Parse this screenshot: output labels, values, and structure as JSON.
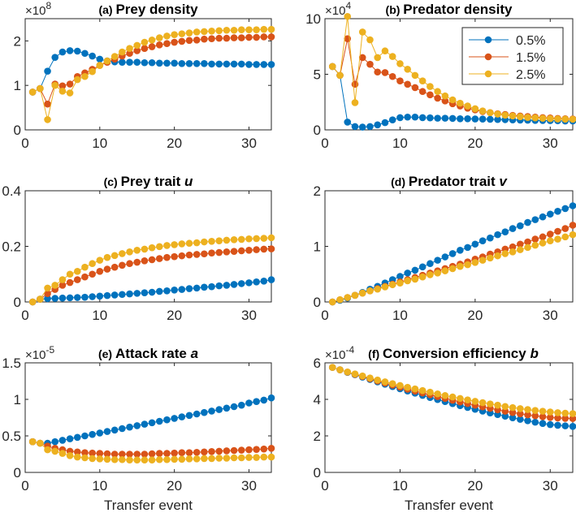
{
  "colors": [
    "#0072BD",
    "#D95319",
    "#EDB120"
  ],
  "chart_data": [
    {
      "type": "line",
      "panel": "(a)",
      "title": "Prey density",
      "title_var": "",
      "exponent": "8",
      "xlabel": "",
      "xlim": [
        0,
        33
      ],
      "xticks": [
        0,
        10,
        20,
        30
      ],
      "ylim": [
        0,
        2.5
      ],
      "yticks": [
        0,
        1,
        2
      ],
      "x": [
        1,
        2,
        3,
        4,
        5,
        6,
        7,
        8,
        9,
        10,
        11,
        12,
        13,
        14,
        15,
        16,
        17,
        18,
        19,
        20,
        21,
        22,
        23,
        24,
        25,
        26,
        27,
        28,
        29,
        30,
        31,
        32,
        33
      ],
      "series": [
        {
          "values": [
            0.85,
            0.93,
            1.32,
            1.63,
            1.75,
            1.78,
            1.77,
            1.72,
            1.66,
            1.59,
            1.55,
            1.53,
            1.52,
            1.52,
            1.52,
            1.51,
            1.51,
            1.5,
            1.5,
            1.5,
            1.49,
            1.49,
            1.49,
            1.49,
            1.48,
            1.48,
            1.48,
            1.48,
            1.48,
            1.47,
            1.47,
            1.47,
            1.47
          ]
        },
        {
          "values": [
            0.85,
            0.93,
            0.58,
            1.03,
            0.99,
            1.03,
            1.2,
            1.28,
            1.36,
            1.45,
            1.52,
            1.59,
            1.66,
            1.72,
            1.78,
            1.83,
            1.87,
            1.91,
            1.94,
            1.97,
            1.99,
            2.01,
            2.02,
            2.04,
            2.05,
            2.06,
            2.06,
            2.07,
            2.07,
            2.08,
            2.08,
            2.09,
            2.09
          ]
        },
        {
          "values": [
            0.85,
            0.93,
            0.23,
            1.0,
            0.87,
            0.83,
            1.13,
            1.2,
            1.31,
            1.45,
            1.55,
            1.65,
            1.75,
            1.83,
            1.9,
            1.97,
            2.02,
            2.07,
            2.11,
            2.14,
            2.16,
            2.18,
            2.2,
            2.21,
            2.22,
            2.23,
            2.24,
            2.24,
            2.25,
            2.25,
            2.25,
            2.26,
            2.26
          ]
        }
      ]
    },
    {
      "type": "line",
      "panel": "(b)",
      "title": "Predator density",
      "title_var": "",
      "exponent": "4",
      "xlabel": "",
      "xlim": [
        0,
        33
      ],
      "xticks": [
        0,
        10,
        20,
        30
      ],
      "ylim": [
        0,
        10
      ],
      "yticks": [
        0,
        5,
        10
      ],
      "legend": {
        "position": "top-right",
        "entries": [
          "0.5%",
          "1.5%",
          "2.5%"
        ]
      },
      "x": [
        1,
        2,
        3,
        4,
        5,
        6,
        7,
        8,
        9,
        10,
        11,
        12,
        13,
        14,
        15,
        16,
        17,
        18,
        19,
        20,
        21,
        22,
        23,
        24,
        25,
        26,
        27,
        28,
        29,
        30,
        31,
        32,
        33
      ],
      "series": [
        {
          "name": "0.5%",
          "values": [
            5.7,
            4.9,
            0.7,
            0.3,
            0.25,
            0.3,
            0.45,
            0.65,
            0.9,
            1.1,
            1.15,
            1.15,
            1.1,
            1.08,
            1.05,
            1.05,
            1.03,
            1.0,
            1.0,
            0.98,
            0.97,
            0.95,
            0.93,
            0.92,
            0.9,
            0.88,
            0.87,
            0.85,
            0.84,
            0.83,
            0.82,
            0.8,
            0.8
          ]
        },
        {
          "name": "1.5%",
          "values": [
            5.7,
            4.9,
            8.2,
            4.1,
            6.5,
            5.9,
            5.2,
            5.15,
            4.8,
            4.4,
            4.1,
            3.8,
            3.45,
            3.15,
            2.85,
            2.6,
            2.35,
            2.15,
            1.95,
            1.8,
            1.65,
            1.55,
            1.45,
            1.38,
            1.3,
            1.25,
            1.2,
            1.15,
            1.1,
            1.07,
            1.03,
            1.0,
            0.98
          ]
        },
        {
          "name": "2.5%",
          "values": [
            5.7,
            4.9,
            10.2,
            2.45,
            8.8,
            8.1,
            6.5,
            7.1,
            6.6,
            5.95,
            5.45,
            4.9,
            4.4,
            3.9,
            3.45,
            3.05,
            2.7,
            2.4,
            2.15,
            1.9,
            1.7,
            1.55,
            1.42,
            1.32,
            1.25,
            1.18,
            1.12,
            1.08,
            1.04,
            1.01,
            0.98,
            0.96,
            0.95
          ]
        }
      ]
    },
    {
      "type": "line",
      "panel": "(c)",
      "title": "Prey trait",
      "title_var": "u",
      "exponent": "",
      "xlabel": "",
      "xlim": [
        0,
        33
      ],
      "xticks": [
        0,
        10,
        20,
        30
      ],
      "ylim": [
        0,
        0.4
      ],
      "yticks": [
        0,
        0.2,
        0.4
      ],
      "x": [
        1,
        2,
        3,
        4,
        5,
        6,
        7,
        8,
        9,
        10,
        11,
        12,
        13,
        14,
        15,
        16,
        17,
        18,
        19,
        20,
        21,
        22,
        23,
        24,
        25,
        26,
        27,
        28,
        29,
        30,
        31,
        32,
        33
      ],
      "series": [
        {
          "values": [
            0,
            0.01,
            0.012,
            0.013,
            0.014,
            0.015,
            0.016,
            0.017,
            0.019,
            0.021,
            0.023,
            0.025,
            0.027,
            0.029,
            0.031,
            0.033,
            0.035,
            0.038,
            0.04,
            0.043,
            0.045,
            0.048,
            0.05,
            0.053,
            0.055,
            0.058,
            0.06,
            0.063,
            0.066,
            0.069,
            0.072,
            0.075,
            0.08
          ]
        },
        {
          "values": [
            0,
            0.01,
            0.03,
            0.045,
            0.06,
            0.07,
            0.08,
            0.09,
            0.1,
            0.11,
            0.118,
            0.125,
            0.132,
            0.138,
            0.143,
            0.148,
            0.152,
            0.156,
            0.16,
            0.163,
            0.166,
            0.169,
            0.171,
            0.173,
            0.176,
            0.178,
            0.18,
            0.182,
            0.184,
            0.186,
            0.188,
            0.19,
            0.191
          ]
        },
        {
          "values": [
            0,
            0.01,
            0.05,
            0.06,
            0.08,
            0.1,
            0.11,
            0.125,
            0.138,
            0.15,
            0.16,
            0.167,
            0.174,
            0.18,
            0.186,
            0.19,
            0.195,
            0.199,
            0.203,
            0.206,
            0.209,
            0.211,
            0.213,
            0.216,
            0.218,
            0.22,
            0.222,
            0.224,
            0.225,
            0.227,
            0.228,
            0.229,
            0.231
          ]
        }
      ]
    },
    {
      "type": "line",
      "panel": "(d)",
      "title": "Predator trait",
      "title_var": "v",
      "exponent": "",
      "xlabel": "",
      "xlim": [
        0,
        33
      ],
      "xticks": [
        0,
        10,
        20,
        30
      ],
      "ylim": [
        0,
        2
      ],
      "yticks": [
        0,
        1,
        2
      ],
      "x": [
        1,
        2,
        3,
        4,
        5,
        6,
        7,
        8,
        9,
        10,
        11,
        12,
        13,
        14,
        15,
        16,
        17,
        18,
        19,
        20,
        21,
        22,
        23,
        24,
        25,
        26,
        27,
        28,
        29,
        30,
        31,
        32,
        33
      ],
      "series": [
        {
          "values": [
            0,
            0.03,
            0.07,
            0.12,
            0.17,
            0.23,
            0.28,
            0.34,
            0.4,
            0.46,
            0.52,
            0.57,
            0.63,
            0.69,
            0.75,
            0.81,
            0.87,
            0.93,
            0.98,
            1.04,
            1.1,
            1.15,
            1.21,
            1.26,
            1.32,
            1.37,
            1.43,
            1.48,
            1.53,
            1.58,
            1.63,
            1.68,
            1.73
          ]
        },
        {
          "values": [
            0,
            0.04,
            0.08,
            0.12,
            0.16,
            0.2,
            0.24,
            0.28,
            0.32,
            0.36,
            0.4,
            0.44,
            0.48,
            0.52,
            0.56,
            0.6,
            0.64,
            0.68,
            0.72,
            0.77,
            0.81,
            0.86,
            0.9,
            0.95,
            0.99,
            1.04,
            1.08,
            1.13,
            1.17,
            1.22,
            1.27,
            1.32,
            1.38
          ]
        },
        {
          "values": [
            0,
            0.04,
            0.08,
            0.12,
            0.16,
            0.2,
            0.23,
            0.27,
            0.31,
            0.34,
            0.38,
            0.41,
            0.45,
            0.49,
            0.52,
            0.56,
            0.6,
            0.64,
            0.67,
            0.71,
            0.75,
            0.79,
            0.83,
            0.87,
            0.9,
            0.94,
            0.98,
            1.02,
            1.06,
            1.1,
            1.13,
            1.17,
            1.21
          ]
        }
      ]
    },
    {
      "type": "line",
      "panel": "(e)",
      "title": "Attack rate",
      "title_var": "a",
      "exponent": "-5",
      "xlabel": "Transfer event",
      "xlim": [
        0,
        33
      ],
      "xticks": [
        0,
        10,
        20,
        30
      ],
      "ylim": [
        0,
        1.5
      ],
      "yticks": [
        0,
        0.5,
        1,
        1.5
      ],
      "x": [
        1,
        2,
        3,
        4,
        5,
        6,
        7,
        8,
        9,
        10,
        11,
        12,
        13,
        14,
        15,
        16,
        17,
        18,
        19,
        20,
        21,
        22,
        23,
        24,
        25,
        26,
        27,
        28,
        29,
        30,
        31,
        32,
        33
      ],
      "series": [
        {
          "values": [
            0.42,
            0.4,
            0.4,
            0.42,
            0.44,
            0.46,
            0.48,
            0.5,
            0.52,
            0.54,
            0.56,
            0.58,
            0.6,
            0.62,
            0.64,
            0.66,
            0.68,
            0.7,
            0.72,
            0.74,
            0.76,
            0.78,
            0.8,
            0.82,
            0.84,
            0.86,
            0.88,
            0.9,
            0.92,
            0.95,
            0.97,
            0.99,
            1.02
          ]
        },
        {
          "values": [
            0.42,
            0.4,
            0.36,
            0.33,
            0.31,
            0.29,
            0.28,
            0.27,
            0.265,
            0.26,
            0.255,
            0.25,
            0.25,
            0.25,
            0.25,
            0.25,
            0.255,
            0.26,
            0.26,
            0.265,
            0.27,
            0.27,
            0.275,
            0.28,
            0.285,
            0.29,
            0.295,
            0.3,
            0.305,
            0.31,
            0.315,
            0.32,
            0.33
          ]
        },
        {
          "values": [
            0.42,
            0.4,
            0.31,
            0.29,
            0.26,
            0.23,
            0.21,
            0.2,
            0.19,
            0.185,
            0.18,
            0.175,
            0.175,
            0.17,
            0.17,
            0.17,
            0.17,
            0.175,
            0.175,
            0.18,
            0.18,
            0.185,
            0.185,
            0.19,
            0.19,
            0.195,
            0.195,
            0.2,
            0.2,
            0.205,
            0.205,
            0.21,
            0.21
          ]
        }
      ]
    },
    {
      "type": "line",
      "panel": "(f)",
      "title": "Conversion efficiency",
      "title_var": "b",
      "exponent": "-4",
      "xlabel": "Transfer event",
      "xlim": [
        0,
        33
      ],
      "xticks": [
        0,
        10,
        20,
        30
      ],
      "ylim": [
        0,
        6
      ],
      "yticks": [
        0,
        2,
        4,
        6
      ],
      "x": [
        1,
        2,
        3,
        4,
        5,
        6,
        7,
        8,
        9,
        10,
        11,
        12,
        13,
        14,
        15,
        16,
        17,
        18,
        19,
        20,
        21,
        22,
        23,
        24,
        25,
        26,
        27,
        28,
        29,
        30,
        31,
        32,
        33
      ],
      "series": [
        {
          "values": [
            5.75,
            5.62,
            5.48,
            5.35,
            5.22,
            5.09,
            4.96,
            4.83,
            4.7,
            4.58,
            4.46,
            4.34,
            4.22,
            4.1,
            3.99,
            3.88,
            3.77,
            3.66,
            3.56,
            3.46,
            3.36,
            3.26,
            3.17,
            3.08,
            2.99,
            2.91,
            2.83,
            2.75,
            2.68,
            2.62,
            2.58,
            2.55,
            2.52
          ]
        },
        {
          "values": [
            5.75,
            5.62,
            5.49,
            5.37,
            5.25,
            5.13,
            5.01,
            4.89,
            4.78,
            4.67,
            4.56,
            4.45,
            4.35,
            4.25,
            4.15,
            4.05,
            3.95,
            3.86,
            3.77,
            3.68,
            3.59,
            3.51,
            3.43,
            3.35,
            3.28,
            3.21,
            3.15,
            3.1,
            3.05,
            3.01,
            2.98,
            2.96,
            2.95
          ]
        },
        {
          "values": [
            5.75,
            5.62,
            5.5,
            5.39,
            5.28,
            5.17,
            5.06,
            4.96,
            4.86,
            4.76,
            4.66,
            4.57,
            4.48,
            4.39,
            4.3,
            4.21,
            4.13,
            4.05,
            3.97,
            3.89,
            3.82,
            3.75,
            3.68,
            3.61,
            3.55,
            3.49,
            3.44,
            3.39,
            3.35,
            3.31,
            3.27,
            3.24,
            3.22
          ]
        }
      ]
    }
  ]
}
